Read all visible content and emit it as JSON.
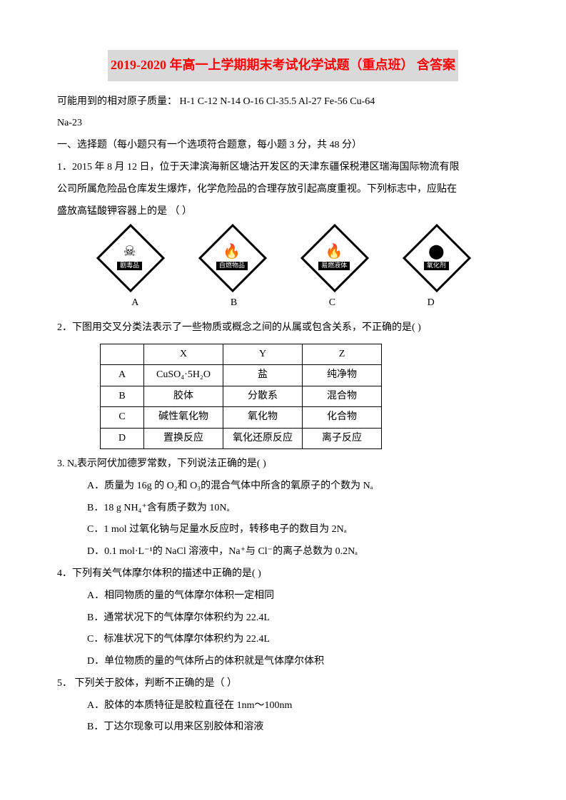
{
  "title": "2019-2020 年高一上学期期末考试化学试题（重点班）  含答案",
  "atomic_line1": "可能用到的相对原子质量：  H-1  C-12 N-14 O-16   Cl-35.5  Al-27   Fe-56  Cu-64",
  "atomic_line2": "Na-23",
  "section1": "一、选择题（每小题只有一个选项符合题意，每小题 3 分，共 48 分）",
  "q1_l1": "1．2015 年 8 月 12 日，位于天津滨海新区塘沽开发区的天津东疆保税港区瑞海国际物流有限",
  "q1_l2": "公司所属危险品仓库发生爆炸，化学危险品的合理存放引起高度重视。下列标志中，应贴在",
  "q1_l3": "盛放高锰酸钾容器上的是 （    ）",
  "hazards": [
    {
      "icon": "☠",
      "label": "剧毒品"
    },
    {
      "icon": "🔥",
      "label": "自燃物品"
    },
    {
      "icon": "🔥",
      "label": "易燃液体"
    },
    {
      "icon": "⬤",
      "label": "氧化剂"
    }
  ],
  "abcd": [
    "A",
    "B",
    "C",
    "D"
  ],
  "q2": "2．下图用交叉分类法表示了一些物质或概念之间的从属或包含关系，不正确的是(      )",
  "table": {
    "headers": [
      "",
      "X",
      "Y",
      "Z"
    ],
    "rows": [
      [
        "A",
        "CuSO₄·5H₂O",
        "盐",
        "纯净物"
      ],
      [
        "B",
        "胶体",
        "分散系",
        "混合物"
      ],
      [
        "C",
        "碱性氧化物",
        "氧化物",
        "化合物"
      ],
      [
        "D",
        "置换反应",
        "氧化还原反应",
        "离子反应"
      ]
    ]
  },
  "q3": "3. Nₐ表示阿伏加德罗常数，下列说法正确的是(      )",
  "q3a": "A．质量为 16g 的 O₂和 O₃的混合气体中所含的氧原子的个数为 Nₐ",
  "q3b": "B．18 g NH₄⁺含有质子数为 10Nₐ",
  "q3c": "C．1 mol 过氧化钠与足量水反应时，转移电子的数目为 2Nₐ",
  "q3d": "D．0.1 mol·L⁻¹的 NaCl 溶液中，Na⁺与 Cl⁻的离子总数为 0.2Nₐ",
  "q4": "4．下列有关气体摩尔体积的描述中正确的是(      )",
  "q4a": "A．相同物质的量的气体摩尔体积一定相同",
  "q4b": "B．通常状况下的气体摩尔体积约为 22.4L",
  "q4c": "C．标准状况下的气体摩尔体积约为 22.4L",
  "q4d": "D．单位物质的量的气体所占的体积就是气体摩尔体积",
  "q5": "5． 下列关于胶体，判断不正确的是（    ）",
  "q5a": "A．胶体的本质特征是胶粒直径在 1nm～100nm",
  "q5b": "B．丁达尔现象可以用来区别胶体和溶液"
}
